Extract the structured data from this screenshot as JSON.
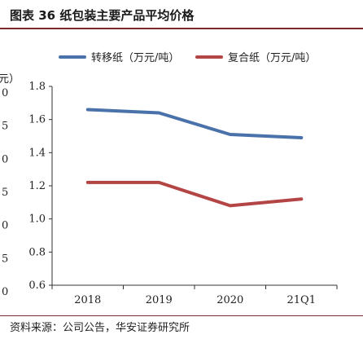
{
  "figure": {
    "title": "图表 36  纸包装主要产品平均价格",
    "source": "资料来源：公司公告，华安证券研究所"
  },
  "chart_data": {
    "type": "line",
    "categories": [
      "2018",
      "2019",
      "2020",
      "21Q1"
    ],
    "series": [
      {
        "name": "转移纸（万元/吨）",
        "values": [
          1.66,
          1.64,
          1.51,
          1.49
        ],
        "color": "#4a72aa"
      },
      {
        "name": "复合纸（万元/吨）",
        "values": [
          1.22,
          1.22,
          1.08,
          1.12
        ],
        "color": "#b34545"
      }
    ],
    "ylim": [
      0.6,
      1.8
    ],
    "yticks": [
      "0.6",
      "0.8",
      "1.0",
      "1.2",
      "1.4",
      "1.6",
      "1.8"
    ],
    "left_axis_partial_ticks": [
      "0",
      "5",
      "0",
      "5",
      "0",
      "5",
      "0"
    ],
    "left_axis_partial_label": "元）",
    "legend_position": "top",
    "grid": false
  }
}
